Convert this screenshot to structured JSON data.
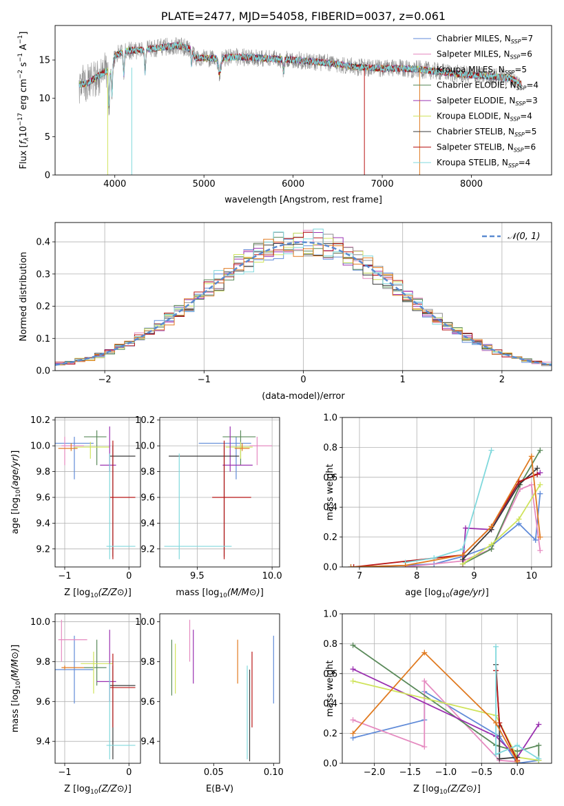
{
  "colors": {
    "Chabrier MILES": "#5f8ad8",
    "Salpeter MILES": "#e58ac0",
    "Kroupa MILES": "#8c8c8c",
    "Chabrier ELODIE": "#5a8a5a",
    "Salpeter ELODIE": "#9a30b0",
    "Kroupa ELODIE": "#cfe35a",
    "Chabrier STELIB": "#3a3a3a",
    "Salpeter STELIB": "#b81414",
    "Kroupa STELIB": "#7fd8dc",
    "normal": "#5a8ad0",
    "orange": "#e07a20",
    "grid": "#b0b0b0"
  },
  "chart_data": [
    {
      "id": "spectrum",
      "type": "line",
      "title": "PLATE=2477, MJD=54058, FIBERID=0037, z=0.061",
      "xlabel": "wavelength [Angstrom, rest frame]",
      "ylabel": "Flux [f_λ10^-17 erg cm^-2 s^-1 A^-1]",
      "xlim": [
        3330,
        8900
      ],
      "ylim": [
        0,
        19.5
      ],
      "xticks": [
        "4000",
        "5000",
        "6000",
        "7000",
        "8000"
      ],
      "yticks": [
        "0",
        "5",
        "10",
        "15"
      ],
      "grid": false,
      "legend_position": "right",
      "legend": [
        {
          "label": "Chabrier MILES",
          "nssp": "7"
        },
        {
          "label": "Salpeter MILES",
          "nssp": "6"
        },
        {
          "label": "Kroupa MILES",
          "nssp": "5"
        },
        {
          "label": "Chabrier ELODIE",
          "nssp": "4"
        },
        {
          "label": "Salpeter ELODIE",
          "nssp": "3"
        },
        {
          "label": "Kroupa ELODIE",
          "nssp": "4"
        },
        {
          "label": "Chabrier STELIB",
          "nssp": "5"
        },
        {
          "label": "Salpeter STELIB",
          "nssp": "6"
        },
        {
          "label": "Kroupa STELIB",
          "nssp": "4"
        }
      ],
      "continuum": [
        [
          3600,
          11.8
        ],
        [
          3700,
          12.0
        ],
        [
          3800,
          12.8
        ],
        [
          3900,
          13.5
        ],
        [
          3950,
          13.2
        ],
        [
          4000,
          15.5
        ],
        [
          4100,
          16.2
        ],
        [
          4300,
          16.3
        ],
        [
          4500,
          16.6
        ],
        [
          4700,
          16.9
        ],
        [
          4860,
          16.4
        ],
        [
          4900,
          15.3
        ],
        [
          5100,
          15.2
        ],
        [
          5400,
          15.4
        ],
        [
          5700,
          15.2
        ],
        [
          6000,
          15.0
        ],
        [
          6400,
          14.6
        ],
        [
          6700,
          14.1
        ],
        [
          7000,
          13.9
        ],
        [
          7200,
          13.9
        ],
        [
          7400,
          13.8
        ],
        [
          7700,
          13.4
        ],
        [
          8000,
          13.0
        ],
        [
          8200,
          12.9
        ],
        [
          8450,
          12.6
        ],
        [
          8560,
          11.8
        ]
      ]
    },
    {
      "id": "residuals",
      "type": "line",
      "xlabel": "(data-model)/error",
      "ylabel": "Normed distribution",
      "xlim": [
        -2.5,
        2.5
      ],
      "ylim": [
        0,
        0.46
      ],
      "xticks": [
        "−2",
        "−1",
        "0",
        "1",
        "2"
      ],
      "yticks": [
        "0.0",
        "0.1",
        "0.2",
        "0.3",
        "0.4"
      ],
      "grid": true,
      "legend": [
        {
          "label": "𝒩(0, 1)"
        }
      ],
      "bins": 50
    },
    {
      "id": "age-vs-Z",
      "type": "scatter",
      "xlabel": "Z [log10(Z/Z⊙)]",
      "ylabel": "age  [log10(age/yr)]",
      "xlim": [
        -1.15,
        0.18
      ],
      "ylim": [
        9.06,
        10.22
      ],
      "xticks": [
        "−1",
        "0"
      ],
      "yticks": [
        "9.2",
        "9.4",
        "9.6",
        "9.8",
        "10.0",
        "10.2"
      ],
      "grid": true,
      "points": [
        {
          "series": "Chabrier MILES",
          "x": -0.85,
          "y": 10.02,
          "xerr": [
            0.35,
            0.3
          ],
          "yerr": [
            0.28,
            0.05
          ]
        },
        {
          "series": "Salpeter MILES",
          "x": -1.0,
          "y": 10.0,
          "xerr": [
            0.05,
            0.3
          ],
          "yerr": [
            0.15,
            0.07
          ]
        },
        {
          "series": "Chabrier ELODIE",
          "x": -0.5,
          "y": 10.07,
          "xerr": [
            0.2,
            0.15
          ],
          "yerr": [
            0.22,
            0.05
          ]
        },
        {
          "series": "Kroupa ELODIE",
          "x": -0.6,
          "y": 9.99,
          "xerr": [
            0.25,
            0.3
          ],
          "yerr": [
            0.09,
            0.04
          ]
        },
        {
          "series": "Salpeter ELODIE",
          "x": -0.3,
          "y": 9.85,
          "xerr": [
            0.15,
            0.1
          ],
          "yerr": [
            0.05,
            0.3
          ]
        },
        {
          "series": "Chabrier STELIB",
          "x": -0.25,
          "y": 9.92,
          "xerr": [
            0.05,
            0.35
          ],
          "yerr": [
            0.78,
            0.08
          ]
        },
        {
          "series": "Salpeter STELIB",
          "x": -0.25,
          "y": 9.6,
          "xerr": [
            0.05,
            0.35
          ],
          "yerr": [
            0.48,
            0.44
          ]
        },
        {
          "series": "Kroupa STELIB",
          "x": -0.3,
          "y": 9.22,
          "xerr": [
            0.05,
            0.4
          ],
          "yerr": [
            0.1,
            0.72
          ]
        },
        {
          "series": "orange",
          "x": -0.9,
          "y": 9.98,
          "xerr": [
            0.2,
            0.1
          ],
          "yerr": [
            0.02,
            0.04
          ]
        }
      ]
    },
    {
      "id": "age-vs-mass",
      "type": "scatter",
      "xlabel": "mass [log10(M/M⊙)]",
      "ylabel": "",
      "xlim": [
        9.25,
        10.05
      ],
      "ylim": [
        9.06,
        10.22
      ],
      "xticks": [
        "9.5",
        "10.0"
      ],
      "yticks": [
        "9.2",
        "9.4",
        "9.6",
        "9.8",
        "10.0",
        "10.2"
      ],
      "grid": true,
      "points": [
        {
          "series": "Chabrier MILES",
          "x": 9.76,
          "y": 10.02,
          "xerr": [
            0.25,
            0.1
          ],
          "yerr": [
            0.28,
            0.05
          ]
        },
        {
          "series": "Salpeter MILES",
          "x": 9.9,
          "y": 10.0,
          "xerr": [
            0.05,
            0.1
          ],
          "yerr": [
            0.15,
            0.07
          ]
        },
        {
          "series": "Chabrier ELODIE",
          "x": 9.79,
          "y": 10.07,
          "xerr": [
            0.12,
            0.1
          ],
          "yerr": [
            0.22,
            0.05
          ]
        },
        {
          "series": "Kroupa ELODIE",
          "x": 9.79,
          "y": 9.99,
          "xerr": [
            0.1,
            0.08
          ],
          "yerr": [
            0.09,
            0.04
          ]
        },
        {
          "series": "Salpeter ELODIE",
          "x": 9.72,
          "y": 9.85,
          "xerr": [
            0.05,
            0.15
          ],
          "yerr": [
            0.05,
            0.3
          ]
        },
        {
          "series": "Chabrier STELIB",
          "x": 9.68,
          "y": 9.92,
          "xerr": [
            0.37,
            0.1
          ],
          "yerr": [
            0.78,
            0.08
          ]
        },
        {
          "series": "Salpeter STELIB",
          "x": 9.68,
          "y": 9.6,
          "xerr": [
            0.08,
            0.18
          ],
          "yerr": [
            0.48,
            0.44
          ]
        },
        {
          "series": "Kroupa STELIB",
          "x": 9.38,
          "y": 9.22,
          "xerr": [
            0.1,
            0.35
          ],
          "yerr": [
            0.1,
            0.72
          ]
        },
        {
          "series": "orange",
          "x": 9.8,
          "y": 9.98,
          "xerr": [
            0.05,
            0.05
          ],
          "yerr": [
            0.02,
            0.04
          ]
        }
      ]
    },
    {
      "id": "weight-vs-age",
      "type": "line",
      "xlabel": "age  [log10(age/yr)]",
      "ylabel": "mass weight",
      "xlim": [
        6.7,
        10.35
      ],
      "ylim": [
        0,
        1
      ],
      "xticks": [
        "7",
        "8",
        "9",
        "10"
      ],
      "yticks": [
        "0.0",
        "0.2",
        "0.4",
        "0.6",
        "0.8",
        "1.0"
      ],
      "grid": true,
      "series": [
        {
          "name": "Chabrier MILES",
          "x": [
            6.85,
            7.8,
            8.3,
            8.8,
            9.3,
            9.78,
            10.07,
            10.15
          ],
          "y": [
            0.0,
            0.01,
            0.02,
            0.07,
            0.14,
            0.29,
            0.18,
            0.49
          ]
        },
        {
          "name": "Salpeter MILES",
          "x": [
            7.8,
            8.8,
            9.3,
            9.8,
            10.0,
            10.15
          ],
          "y": [
            0.0,
            0.04,
            0.12,
            0.52,
            0.55,
            0.11
          ]
        },
        {
          "name": "Chabrier ELODIE",
          "x": [
            8.8,
            9.3,
            9.8,
            10.15
          ],
          "y": [
            0.02,
            0.12,
            0.55,
            0.78
          ]
        },
        {
          "name": "Salpeter ELODIE",
          "x": [
            8.8,
            8.85,
            9.3,
            9.78,
            10.15
          ],
          "y": [
            0.0,
            0.26,
            0.25,
            0.57,
            0.63
          ]
        },
        {
          "name": "Kroupa ELODIE",
          "x": [
            8.8,
            9.3,
            9.78,
            10.15
          ],
          "y": [
            0.02,
            0.15,
            0.32,
            0.55
          ]
        },
        {
          "name": "Chabrier STELIB",
          "x": [
            8.8,
            9.3,
            9.78,
            10.1
          ],
          "y": [
            0.05,
            0.25,
            0.55,
            0.66
          ]
        },
        {
          "name": "Salpeter STELIB",
          "x": [
            6.9,
            8.8,
            9.3,
            9.78,
            10.1
          ],
          "y": [
            0.0,
            0.08,
            0.27,
            0.57,
            0.62
          ]
        },
        {
          "name": "Kroupa STELIB",
          "x": [
            7.8,
            8.3,
            8.8,
            9.3
          ],
          "y": [
            0.03,
            0.06,
            0.12,
            0.78
          ]
        },
        {
          "name": "orange",
          "x": [
            6.85,
            7.8,
            8.8,
            9.3,
            10.0,
            10.15
          ],
          "y": [
            0.0,
            0.01,
            0.08,
            0.27,
            0.74,
            0.2
          ]
        }
      ]
    },
    {
      "id": "mass-vs-Z",
      "type": "scatter",
      "xlabel": "Z [log10(Z/Z⊙)]",
      "ylabel": "mass [log10(M/M⊙)]",
      "xlim": [
        -1.15,
        0.18
      ],
      "ylim": [
        9.29,
        10.04
      ],
      "xticks": [
        "−1",
        "0"
      ],
      "yticks": [
        "9.4",
        "9.6",
        "9.8",
        "10.0"
      ],
      "grid": true,
      "points": [
        {
          "series": "Chabrier MILES",
          "x": -0.85,
          "y": 9.76,
          "xerr": [
            0.35,
            0.3
          ],
          "yerr": [
            0.17,
            0.17
          ]
        },
        {
          "series": "Salpeter MILES",
          "x": -1.05,
          "y": 9.91,
          "xerr": [
            0.05,
            0.4
          ],
          "yerr": [
            0.11,
            0.1
          ]
        },
        {
          "series": "Chabrier ELODIE",
          "x": -0.5,
          "y": 9.77,
          "xerr": [
            0.2,
            0.15
          ],
          "yerr": [
            0.09,
            0.14
          ]
        },
        {
          "series": "Kroupa ELODIE",
          "x": -0.55,
          "y": 9.79,
          "xerr": [
            0.2,
            0.3
          ],
          "yerr": [
            0.15,
            0.06
          ]
        },
        {
          "series": "Salpeter ELODIE",
          "x": -0.3,
          "y": 9.7,
          "xerr": [
            0.2,
            0.1
          ],
          "yerr": [
            0.1,
            0.26
          ]
        },
        {
          "series": "Chabrier STELIB",
          "x": -0.25,
          "y": 9.68,
          "xerr": [
            0.05,
            0.35
          ],
          "yerr": [
            0.37,
            0.1
          ]
        },
        {
          "series": "Salpeter STELIB",
          "x": -0.25,
          "y": 9.67,
          "xerr": [
            0.05,
            0.35
          ],
          "yerr": [
            0.2,
            0.17
          ]
        },
        {
          "series": "Kroupa STELIB",
          "x": -0.3,
          "y": 9.38,
          "xerr": [
            0.05,
            0.4
          ],
          "yerr": [
            0.07,
            0.41
          ]
        },
        {
          "series": "orange",
          "x": -1.0,
          "y": 9.77,
          "xerr": [
            0.05,
            0.3
          ],
          "yerr": [
            0.01,
            0.01
          ]
        }
      ]
    },
    {
      "id": "mass-vs-ebv",
      "type": "scatter",
      "xlabel": "E(B-V)",
      "ylabel": "",
      "xlim": [
        0.005,
        0.105
      ],
      "ylim": [
        9.29,
        10.04
      ],
      "xticks": [
        "0.05",
        "0.10"
      ],
      "yticks": [
        "9.4",
        "9.6",
        "9.8",
        "10.0"
      ],
      "grid": false,
      "points": [
        {
          "series": "Chabrier MILES",
          "x": 0.1,
          "y": 9.76,
          "yerr": [
            0.17,
            0.17
          ]
        },
        {
          "series": "Salpeter MILES",
          "x": 0.03,
          "y": 9.91,
          "yerr": [
            0.11,
            0.1
          ]
        },
        {
          "series": "Chabrier ELODIE",
          "x": 0.015,
          "y": 9.77,
          "yerr": [
            0.14,
            0.14
          ]
        },
        {
          "series": "Kroupa ELODIE",
          "x": 0.018,
          "y": 9.76,
          "yerr": [
            0.12,
            0.13
          ]
        },
        {
          "series": "Salpeter ELODIE",
          "x": 0.033,
          "y": 9.79,
          "yerr": [
            0.1,
            0.17
          ]
        },
        {
          "series": "Chabrier STELIB",
          "x": 0.08,
          "y": 9.62,
          "yerr": [
            0.32,
            0.14
          ]
        },
        {
          "series": "Salpeter STELIB",
          "x": 0.082,
          "y": 9.66,
          "yerr": [
            0.19,
            0.19
          ]
        },
        {
          "series": "Kroupa STELIB",
          "x": 0.078,
          "y": 9.54,
          "yerr": [
            0.23,
            0.24
          ]
        },
        {
          "series": "orange",
          "x": 0.07,
          "y": 9.8,
          "yerr": [
            0.11,
            0.11
          ]
        }
      ]
    },
    {
      "id": "weight-vs-Z",
      "type": "line",
      "xlabel": "Z [log10(Z/Z⊙)]",
      "ylabel": "mass weight",
      "xlim": [
        -2.45,
        0.48
      ],
      "ylim": [
        0,
        1
      ],
      "xticks": [
        "−2.0",
        "−1.5",
        "−1.0",
        "−0.5",
        "0.0"
      ],
      "yticks": [
        "0.0",
        "0.2",
        "0.4",
        "0.6",
        "0.8",
        "1.0"
      ],
      "grid": true,
      "series": [
        {
          "name": "Chabrier MILES",
          "x": [
            -2.3,
            -1.3,
            -1.3,
            -0.25,
            0.0,
            0.3
          ],
          "y": [
            0.17,
            0.29,
            0.48,
            0.18,
            0.0,
            0.02
          ]
        },
        {
          "name": "Salpeter MILES",
          "x": [
            -2.3,
            -1.3,
            -1.3,
            -0.25,
            0.0
          ],
          "y": [
            0.29,
            0.11,
            0.55,
            0.02,
            0.01
          ]
        },
        {
          "name": "Chabrier ELODIE",
          "x": [
            -2.3,
            -0.3,
            0.0,
            0.3,
            0.3
          ],
          "y": [
            0.79,
            0.12,
            0.08,
            0.12,
            0.02
          ]
        },
        {
          "name": "Salpeter ELODIE",
          "x": [
            -2.3,
            -0.3,
            0.0,
            0.3
          ],
          "y": [
            0.63,
            0.18,
            0.04,
            0.26
          ]
        },
        {
          "name": "Kroupa ELODIE",
          "x": [
            -2.3,
            -0.3,
            0.0,
            0.3
          ],
          "y": [
            0.55,
            0.32,
            0.04,
            0.02
          ]
        },
        {
          "name": "Chabrier STELIB",
          "x": [
            -0.3,
            -0.25,
            -0.25,
            0.0
          ],
          "y": [
            0.66,
            0.25,
            0.03,
            0.04
          ]
        },
        {
          "name": "Salpeter STELIB",
          "x": [
            -0.3,
            -0.25,
            0.0
          ],
          "y": [
            0.62,
            0.27,
            0.02
          ]
        },
        {
          "name": "Kroupa STELIB",
          "x": [
            -0.3,
            -0.3,
            0.0,
            0.3
          ],
          "y": [
            0.78,
            0.06,
            0.12,
            0.03
          ]
        },
        {
          "name": "orange",
          "x": [
            -2.3,
            -1.3,
            -0.3,
            0.0
          ],
          "y": [
            0.2,
            0.74,
            0.27,
            0.01
          ]
        }
      ]
    }
  ]
}
